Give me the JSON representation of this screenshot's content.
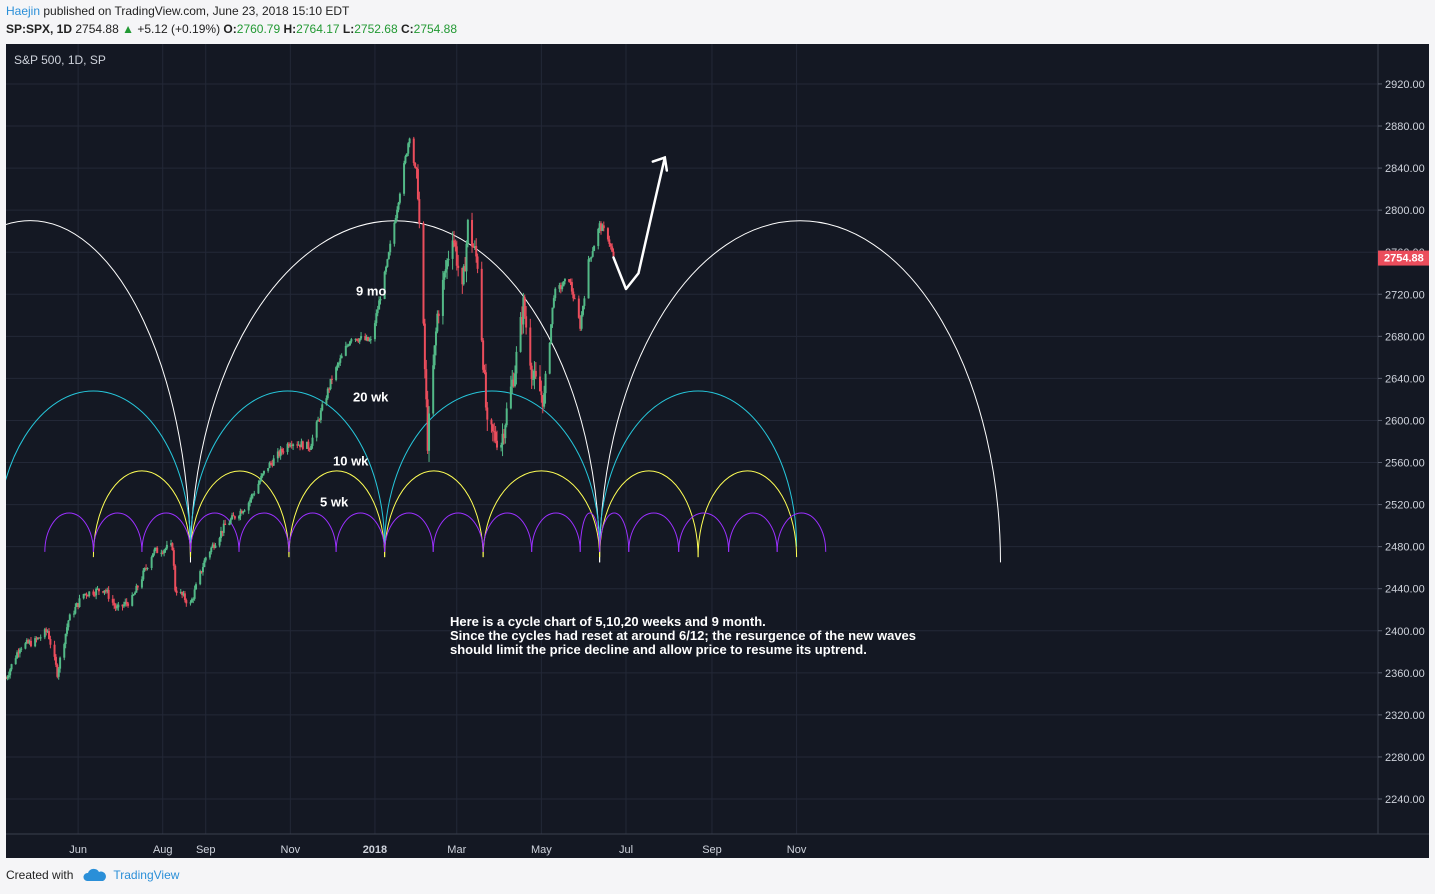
{
  "header": {
    "author": "Haejin",
    "published_text": "published on TradingView.com, June 23, 2018 15:10 EDT",
    "symbol": "SP:SPX, 1D",
    "price": "2754.88",
    "change_arrow": "▲",
    "change": "+5.12 (+0.19%)",
    "open_label": "O:",
    "open": "2760.79",
    "high_label": "H:",
    "high": "2764.17",
    "low_label": "L:",
    "low": "2752.68",
    "close_label": "C:",
    "close": "2754.88"
  },
  "footer": {
    "created_with": "Created with",
    "brand": "TradingView"
  },
  "colors": {
    "background": "#141823",
    "up": "#53b987",
    "down": "#eb4d5c",
    "cycle_9mo": "#ffffff",
    "cycle_20wk": "#26c6da",
    "cycle_10wk": "#ffff55",
    "cycle_5wk": "#9b30ff",
    "price_badge": "#eb4d5c"
  },
  "chart_data": {
    "type": "candlestick",
    "title": "S&P 500, 1D, SP",
    "ylim": [
      2200,
      2950
    ],
    "yticks": [
      2240,
      2280,
      2320,
      2360,
      2400,
      2440,
      2480,
      2520,
      2560,
      2600,
      2640,
      2680,
      2720,
      2760,
      2800,
      2840,
      2880,
      2920
    ],
    "ytick_labels": [
      "2240.00",
      "2280.00",
      "2320.00",
      "2360.00",
      "2400.00",
      "2440.00",
      "2480.00",
      "2520.00",
      "2560.00",
      "2600.00",
      "2640.00",
      "2680.00",
      "2720.00",
      "2760.00",
      "2800.00",
      "2840.00",
      "2880.00",
      "2920.00"
    ],
    "xticks": [
      "Jun",
      "Aug",
      "Sep",
      "Nov",
      "2018",
      "Mar",
      "May",
      "Jul",
      "Sep",
      "Nov"
    ],
    "last_price_label": "2754.88",
    "price_path": [
      [
        "2017-04-10",
        2355
      ],
      [
        "2017-04-20",
        2385
      ],
      [
        "2017-05-01",
        2390
      ],
      [
        "2017-05-10",
        2400
      ],
      [
        "2017-05-17",
        2360
      ],
      [
        "2017-05-25",
        2410
      ],
      [
        "2017-06-05",
        2435
      ],
      [
        "2017-06-20",
        2440
      ],
      [
        "2017-06-29",
        2420
      ],
      [
        "2017-07-10",
        2430
      ],
      [
        "2017-07-25",
        2475
      ],
      [
        "2017-08-08",
        2480
      ],
      [
        "2017-08-10",
        2440
      ],
      [
        "2017-08-21",
        2425
      ],
      [
        "2017-09-01",
        2470
      ],
      [
        "2017-09-15",
        2500
      ],
      [
        "2017-10-01",
        2520
      ],
      [
        "2017-10-15",
        2555
      ],
      [
        "2017-11-01",
        2580
      ],
      [
        "2017-11-15",
        2575
      ],
      [
        "2017-12-01",
        2640
      ],
      [
        "2017-12-15",
        2680
      ],
      [
        "2017-12-29",
        2675
      ],
      [
        "2018-01-10",
        2750
      ],
      [
        "2018-01-26",
        2872
      ],
      [
        "2018-02-01",
        2820
      ],
      [
        "2018-02-08",
        2580
      ],
      [
        "2018-02-15",
        2700
      ],
      [
        "2018-02-26",
        2780
      ],
      [
        "2018-03-05",
        2720
      ],
      [
        "2018-03-09",
        2785
      ],
      [
        "2018-03-16",
        2750
      ],
      [
        "2018-03-23",
        2590
      ],
      [
        "2018-04-02",
        2580
      ],
      [
        "2018-04-12",
        2650
      ],
      [
        "2018-04-18",
        2710
      ],
      [
        "2018-04-25",
        2640
      ],
      [
        "2018-05-03",
        2620
      ],
      [
        "2018-05-10",
        2720
      ],
      [
        "2018-05-21",
        2735
      ],
      [
        "2018-05-29",
        2690
      ],
      [
        "2018-06-04",
        2750
      ],
      [
        "2018-06-12",
        2785
      ],
      [
        "2018-06-18",
        2775
      ],
      [
        "2018-06-22",
        2754
      ]
    ],
    "projection": [
      [
        "2018-06-22",
        2755
      ],
      [
        "2018-07-01",
        2725
      ],
      [
        "2018-07-10",
        2740
      ],
      [
        "2018-07-22",
        2810
      ],
      [
        "2018-07-29",
        2850
      ]
    ],
    "cycles": [
      {
        "name": "9 mo",
        "label": "9 mo",
        "lows": [
          "2017-01-02",
          "2017-08-21",
          "2018-06-12",
          "2019-03-28"
        ]
      },
      {
        "name": "20 wk",
        "label": "20 wk",
        "lows": [
          "2017-04-03",
          "2017-08-21",
          "2018-01-08",
          "2018-06-12",
          "2018-11-01"
        ]
      },
      {
        "name": "10 wk",
        "label": "10 wk",
        "lows": [
          "2017-06-12",
          "2017-08-21",
          "2017-10-31",
          "2018-01-08",
          "2018-03-20",
          "2018-06-12",
          "2018-08-22",
          "2018-11-01"
        ]
      },
      {
        "name": "5 wk",
        "label": "5 wk",
        "lows": [
          "2017-05-08",
          "2017-06-12",
          "2017-07-17",
          "2017-08-21",
          "2017-09-25",
          "2017-10-31",
          "2017-12-04",
          "2018-01-08",
          "2018-02-12",
          "2018-03-20",
          "2018-04-24",
          "2018-05-29",
          "2018-06-12",
          "2018-07-03",
          "2018-08-08",
          "2018-09-13",
          "2018-10-18",
          "2018-11-22"
        ]
      }
    ]
  },
  "annotation": {
    "line1": "Here is a cycle chart of 5,10,20 weeks and 9 month.",
    "line2": "Since the cycles had reset at around 6/12; the resurgence of the new waves",
    "line3": "should limit the price decline and allow price to resume its uptrend."
  }
}
